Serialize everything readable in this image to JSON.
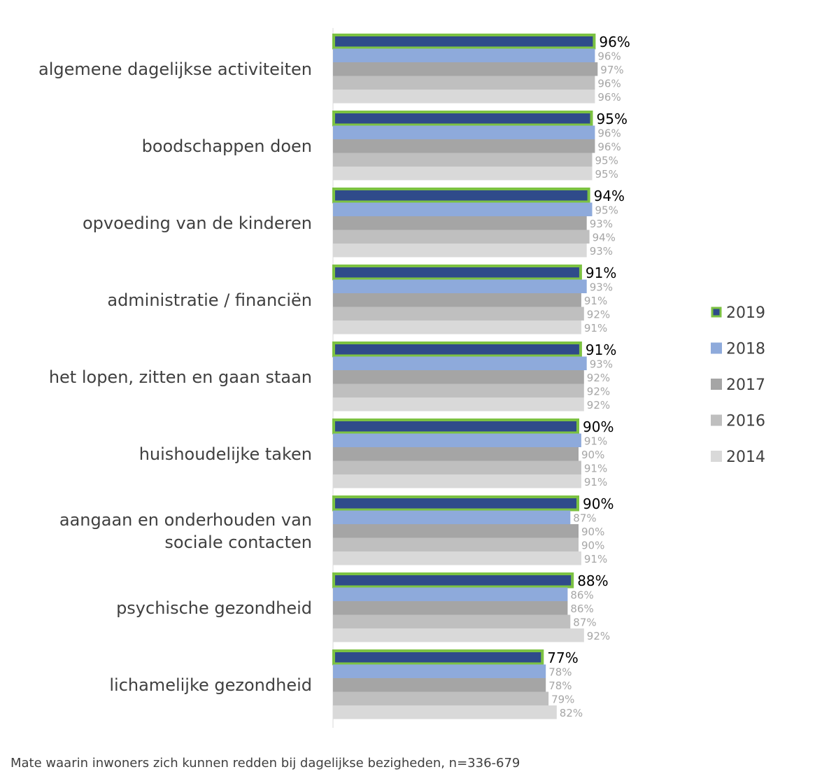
{
  "chart_data": {
    "type": "bar",
    "orientation": "horizontal",
    "categories": [
      [
        "algemene dagelijkse activiteiten"
      ],
      [
        "boodschappen doen"
      ],
      [
        "opvoeding van de kinderen"
      ],
      [
        "administratie / financiën"
      ],
      [
        "het lopen, zitten en gaan staan"
      ],
      [
        "huishoudelijke taken"
      ],
      [
        "aangaan en onderhouden van",
        "sociale contacten"
      ],
      [
        "psychische gezondheid"
      ],
      [
        "lichamelijke gezondheid"
      ]
    ],
    "series": [
      {
        "name": "2019",
        "color": "#2f4b8a",
        "outline": "#7cc242",
        "values": [
          96,
          95,
          94,
          91,
          91,
          90,
          90,
          88,
          77
        ]
      },
      {
        "name": "2018",
        "color": "#8eaadb",
        "values": [
          96,
          96,
          95,
          93,
          93,
          91,
          87,
          86,
          78
        ]
      },
      {
        "name": "2017",
        "color": "#a5a5a5",
        "values": [
          97,
          96,
          93,
          91,
          92,
          90,
          90,
          86,
          78
        ]
      },
      {
        "name": "2016",
        "color": "#bfbfbf",
        "values": [
          96,
          95,
          94,
          92,
          92,
          91,
          90,
          87,
          79
        ]
      },
      {
        "name": "2014",
        "color": "#d9d9d9",
        "values": [
          96,
          95,
          93,
          91,
          92,
          91,
          91,
          92,
          82
        ]
      }
    ],
    "value_suffix": "%",
    "xlim": [
      0,
      100
    ],
    "legend_position": "right",
    "grid": false
  },
  "footnote": "Mate waarin inwoners zich kunnen redden bij dagelijkse bezigheden, n=336-679"
}
